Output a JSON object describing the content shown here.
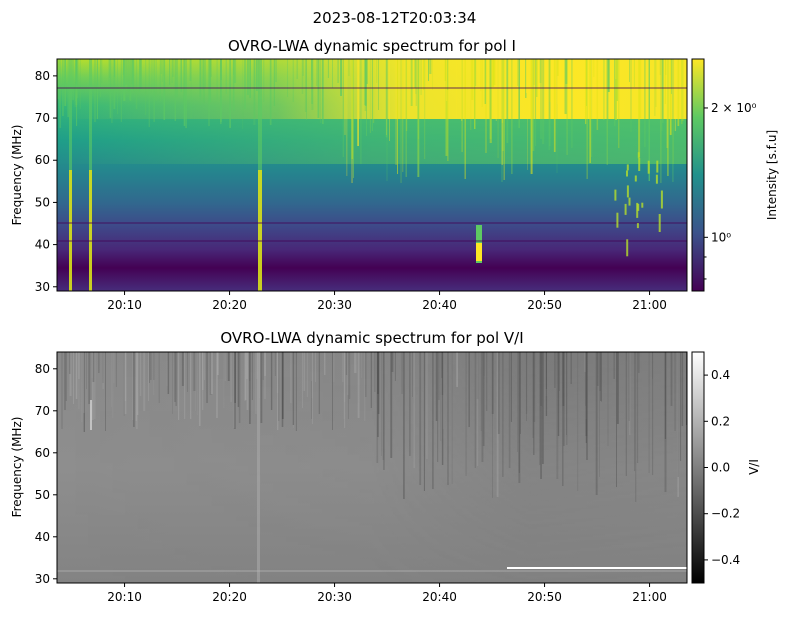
{
  "suptitle": "2023-08-12T20:03:34",
  "chart_data": [
    {
      "type": "heatmap",
      "title": "OVRO-LWA dynamic spectrum for pol I",
      "xlabel": "",
      "ylabel": "Frequency (MHz)",
      "xlim": [
        "20:03:34",
        "21:03:34"
      ],
      "ylim": [
        29,
        84
      ],
      "x_ticks": [
        "20:10",
        "20:20",
        "20:30",
        "20:40",
        "20:50",
        "21:00"
      ],
      "y_ticks": [
        30,
        40,
        50,
        60,
        70,
        80
      ],
      "colormap": "viridis",
      "colorbar": {
        "label": "Intensity [s.f.u]",
        "scale": "log",
        "range": [
          0.75,
          2.6
        ],
        "major_ticks": [
          {
            "value": 2,
            "label": "2 × 10⁰"
          },
          {
            "value": 1,
            "label": "10⁰"
          }
        ],
        "minor_ticks": [
          0.8,
          0.9
        ]
      },
      "colors": [
        "#440154",
        "#3b528b",
        "#21918c",
        "#5ec962",
        "#fde725"
      ]
    },
    {
      "type": "heatmap",
      "title": "OVRO-LWA dynamic spectrum for pol V/I",
      "xlabel": "",
      "ylabel": "Frequency (MHz)",
      "xlim": [
        "20:03:34",
        "21:03:34"
      ],
      "ylim": [
        29,
        84
      ],
      "x_ticks": [
        "20:10",
        "20:20",
        "20:30",
        "20:40",
        "20:50",
        "21:00"
      ],
      "y_ticks": [
        30,
        40,
        50,
        60,
        70,
        80
      ],
      "colormap": "gray",
      "colorbar": {
        "label": "V/I",
        "scale": "linear",
        "range": [
          -0.5,
          0.5
        ],
        "major_ticks": [
          {
            "value": 0.4,
            "label": "0.4"
          },
          {
            "value": 0.2,
            "label": "0.2"
          },
          {
            "value": 0.0,
            "label": "0.0"
          },
          {
            "value": -0.2,
            "label": "−0.2"
          },
          {
            "value": -0.4,
            "label": "−0.4"
          }
        ]
      },
      "colors": [
        "#000000",
        "#ffffff"
      ]
    }
  ]
}
